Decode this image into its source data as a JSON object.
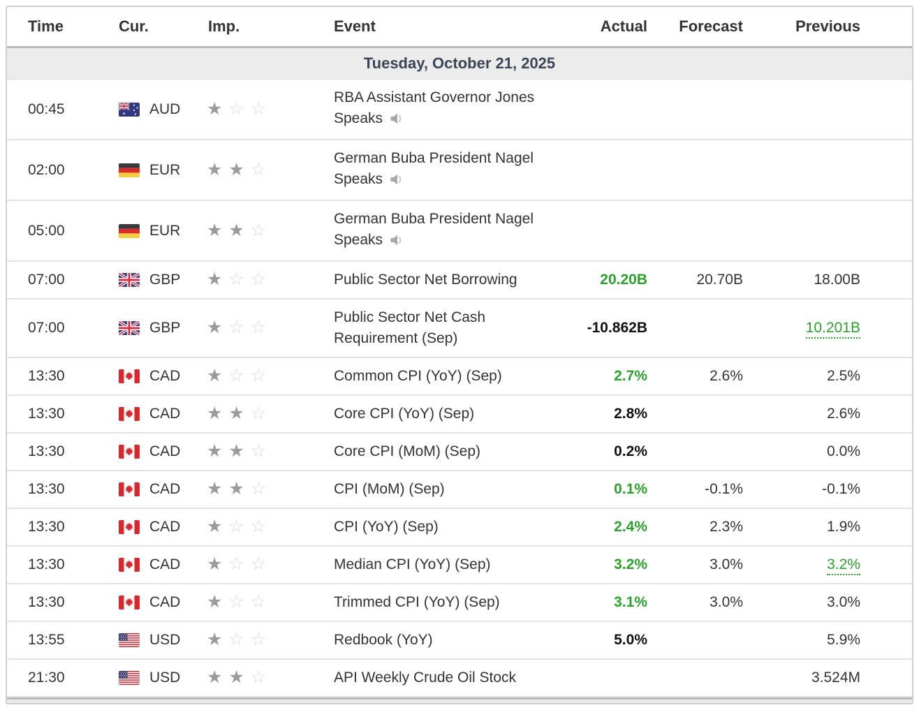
{
  "table": {
    "columns": [
      "Time",
      "Cur.",
      "Imp.",
      "Event",
      "Actual",
      "Forecast",
      "Previous"
    ],
    "date_header": "Tuesday, October 21, 2025",
    "importance_scale_max": 3,
    "rows": [
      {
        "time": "00:45",
        "currency": "AUD",
        "flag": "australia",
        "importance": 1,
        "event": "RBA Assistant Governor Jones Speaks",
        "speaker": true,
        "actual": "",
        "forecast": "",
        "previous": ""
      },
      {
        "time": "02:00",
        "currency": "EUR",
        "flag": "germany",
        "importance": 2,
        "event": "German Buba President Nagel Speaks",
        "speaker": true,
        "actual": "",
        "forecast": "",
        "previous": ""
      },
      {
        "time": "05:00",
        "currency": "EUR",
        "flag": "germany",
        "importance": 2,
        "event": "German Buba President Nagel Speaks",
        "speaker": true,
        "actual": "",
        "forecast": "",
        "previous": ""
      },
      {
        "time": "07:00",
        "currency": "GBP",
        "flag": "uk",
        "importance": 1,
        "event": "Public Sector Net Borrowing",
        "speaker": false,
        "actual": "20.20B",
        "actual_style": "better",
        "forecast": "20.70B",
        "previous": "18.00B"
      },
      {
        "time": "07:00",
        "currency": "GBP",
        "flag": "uk",
        "importance": 1,
        "event": "Public Sector Net Cash Requirement (Sep)",
        "speaker": false,
        "actual": "-10.862B",
        "actual_style": "bold",
        "forecast": "",
        "previous": "10.201B",
        "previous_style": "revised"
      },
      {
        "time": "13:30",
        "currency": "CAD",
        "flag": "canada",
        "importance": 1,
        "event": "Common CPI (YoY) (Sep)",
        "speaker": false,
        "actual": "2.7%",
        "actual_style": "better",
        "forecast": "2.6%",
        "previous": "2.5%"
      },
      {
        "time": "13:30",
        "currency": "CAD",
        "flag": "canada",
        "importance": 2,
        "event": "Core CPI (YoY) (Sep)",
        "speaker": false,
        "actual": "2.8%",
        "actual_style": "bold",
        "forecast": "",
        "previous": "2.6%"
      },
      {
        "time": "13:30",
        "currency": "CAD",
        "flag": "canada",
        "importance": 2,
        "event": "Core CPI (MoM) (Sep)",
        "speaker": false,
        "actual": "0.2%",
        "actual_style": "bold",
        "forecast": "",
        "previous": "0.0%"
      },
      {
        "time": "13:30",
        "currency": "CAD",
        "flag": "canada",
        "importance": 2,
        "event": "CPI (MoM) (Sep)",
        "speaker": false,
        "actual": "0.1%",
        "actual_style": "better",
        "forecast": "-0.1%",
        "previous": "-0.1%"
      },
      {
        "time": "13:30",
        "currency": "CAD",
        "flag": "canada",
        "importance": 1,
        "event": "CPI (YoY) (Sep)",
        "speaker": false,
        "actual": "2.4%",
        "actual_style": "better",
        "forecast": "2.3%",
        "previous": "1.9%"
      },
      {
        "time": "13:30",
        "currency": "CAD",
        "flag": "canada",
        "importance": 1,
        "event": "Median CPI (YoY) (Sep)",
        "speaker": false,
        "actual": "3.2%",
        "actual_style": "better",
        "forecast": "3.0%",
        "previous": "3.2%",
        "previous_style": "revised"
      },
      {
        "time": "13:30",
        "currency": "CAD",
        "flag": "canada",
        "importance": 1,
        "event": "Trimmed CPI (YoY) (Sep)",
        "speaker": false,
        "actual": "3.1%",
        "actual_style": "better",
        "forecast": "3.0%",
        "previous": "3.0%"
      },
      {
        "time": "13:55",
        "currency": "USD",
        "flag": "usa",
        "importance": 1,
        "event": "Redbook (YoY)",
        "speaker": false,
        "actual": "5.0%",
        "actual_style": "bold",
        "forecast": "",
        "previous": "5.9%"
      },
      {
        "time": "21:30",
        "currency": "USD",
        "flag": "usa",
        "importance": 2,
        "event": "API Weekly Crude Oil Stock",
        "speaker": false,
        "actual": "",
        "forecast": "",
        "previous": "3.524M"
      }
    ]
  },
  "colors": {
    "better_than_forecast": "#2ca12c",
    "revised_value": "#2ca12c",
    "star_filled": "#9b9b9b",
    "star_empty": "#d9d9d9",
    "date_band_background": "#ececec",
    "date_band_text": "#3c4555"
  }
}
